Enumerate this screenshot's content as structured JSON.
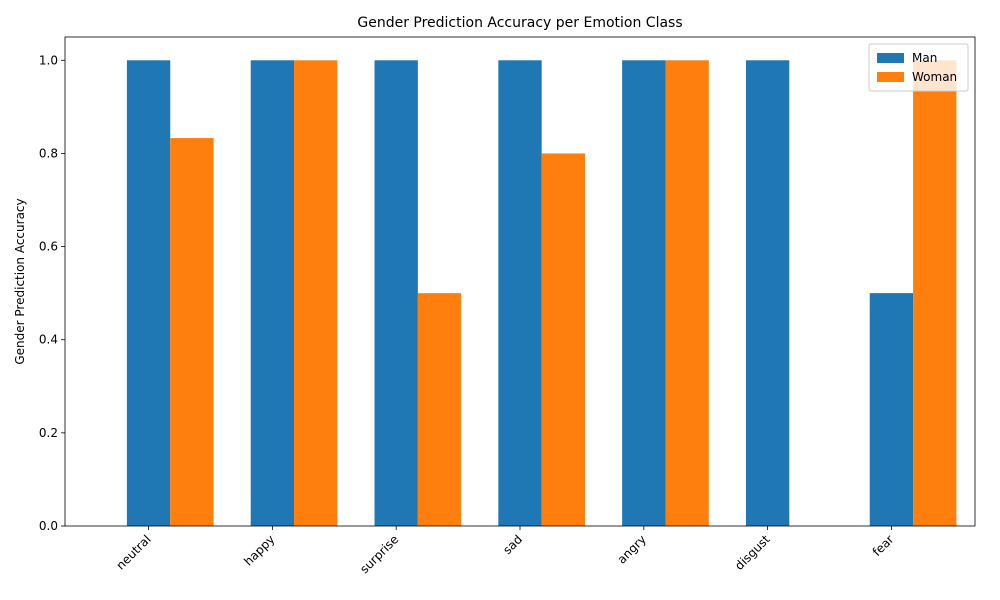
{
  "chart_data": {
    "type": "bar",
    "title": "Gender Prediction Accuracy per Emotion Class",
    "xlabel": "",
    "ylabel": "Gender Prediction Accuracy",
    "categories": [
      "neutral",
      "happy",
      "surprise",
      "sad",
      "angry",
      "disgust",
      "fear"
    ],
    "series": [
      {
        "name": "Man",
        "color": "#1f77b4",
        "values": [
          1.0,
          1.0,
          1.0,
          1.0,
          1.0,
          1.0,
          0.5
        ]
      },
      {
        "name": "Woman",
        "color": "#ff7f0e",
        "values": [
          0.833,
          1.0,
          0.5,
          0.8,
          1.0,
          0.0,
          1.0
        ]
      }
    ],
    "ylim": [
      0,
      1.05
    ],
    "yticks": [
      "0.0",
      "0.2",
      "0.4",
      "0.6",
      "0.8",
      "1.0"
    ],
    "grid": false,
    "legend": "top-right",
    "xtick_rotation": 45
  }
}
